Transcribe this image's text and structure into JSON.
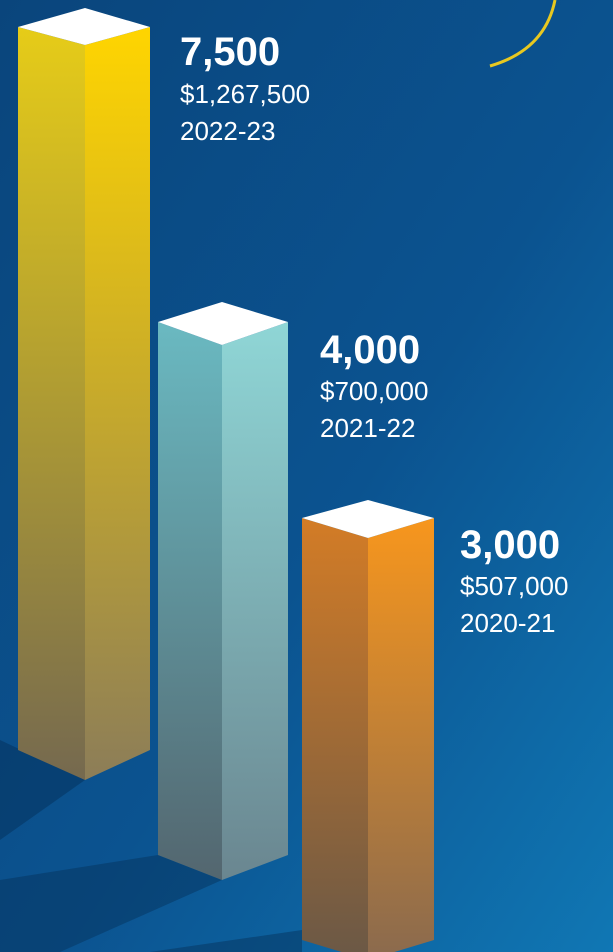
{
  "items": [
    {
      "value": "7,500",
      "amount": "$1,267,500",
      "year": "2022-23"
    },
    {
      "value": "4,000",
      "amount": "$700,000",
      "year": "2021-22"
    },
    {
      "value": "3,000",
      "amount": "$507,000",
      "year": "2020-21"
    }
  ]
}
